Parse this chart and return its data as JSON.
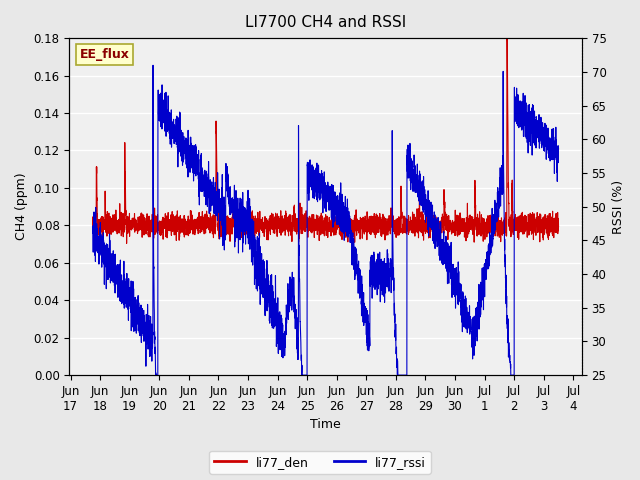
{
  "title": "LI7700 CH4 and RSSI",
  "xlabel": "Time",
  "ylabel_left": "CH4 (ppm)",
  "ylabel_right": "RSSI (%)",
  "ylim_left": [
    0.0,
    0.18
  ],
  "ylim_right": [
    25,
    75
  ],
  "yticks_left": [
    0.0,
    0.02,
    0.04,
    0.06,
    0.08,
    0.1,
    0.12,
    0.14,
    0.16,
    0.18
  ],
  "yticks_right": [
    25,
    30,
    35,
    40,
    45,
    50,
    55,
    60,
    65,
    70,
    75
  ],
  "color_ch4": "#cc0000",
  "color_rssi": "#0000cc",
  "legend_labels": [
    "li77_den",
    "li77_rssi"
  ],
  "watermark_text": "EE_flux",
  "watermark_color": "#8B0000",
  "watermark_bg": "#ffffcc",
  "background_color": "#e8e8e8",
  "plot_bg_color": "#f0f0f0",
  "title_fontsize": 11,
  "axis_fontsize": 9,
  "tick_fontsize": 8.5,
  "legend_fontsize": 9,
  "n_points": 3600
}
